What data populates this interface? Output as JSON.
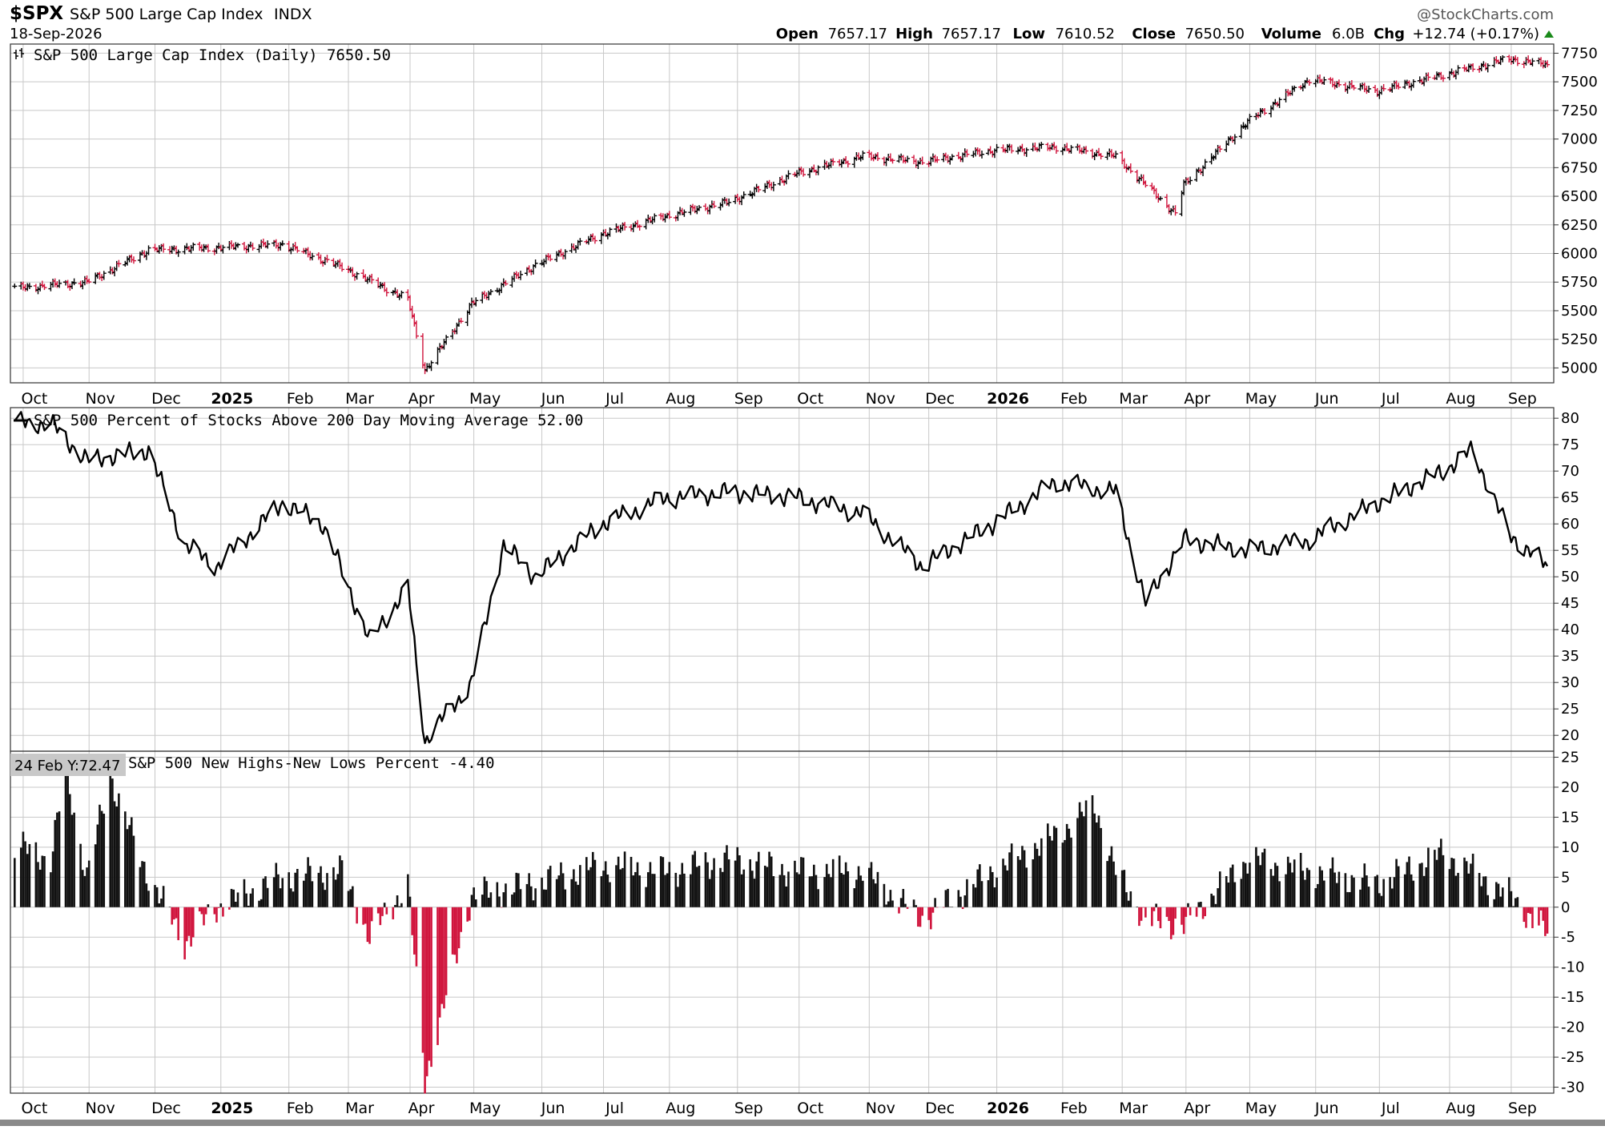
{
  "header": {
    "symbol": "$SPX",
    "name": "S&P 500 Large Cap Index",
    "exchange": "INDX",
    "date": "18-Sep-2026",
    "watermark": "@StockCharts.com",
    "open_label": "Open",
    "open": "7657.17",
    "high_label": "High",
    "high": "7657.17",
    "low_label": "Low",
    "low": "7610.52",
    "close_label": "Close",
    "close": "7650.50",
    "volume_label": "Volume",
    "volume": "6.0B",
    "chg_label": "Chg",
    "chg": "+12.74 (+0.17%)"
  },
  "colors": {
    "up": "#000000",
    "down": "#d0143c",
    "grid": "#c8c8c8",
    "axis": "#333333",
    "tooltip_bg": "#c8c8c8",
    "bottom_bar": "#8a8a8a"
  },
  "x_labels": [
    "Oct",
    "Nov",
    "Dec",
    "2025",
    "Feb",
    "Mar",
    "Apr",
    "May",
    "Jun",
    "Jul",
    "Aug",
    "Sep",
    "Oct",
    "Nov",
    "Dec",
    "2026",
    "Feb",
    "Mar",
    "Apr",
    "May",
    "Jun",
    "Jul",
    "Aug",
    "Sep"
  ],
  "tooltip": "24 Feb Y:72.47",
  "chart_data": [
    {
      "type": "ohlc",
      "title": "S&P 500 Large Cap Index (Daily) 7650.50",
      "x": [
        "2024-09-30",
        "2024-10-31",
        "2024-11-29",
        "2024-12-31",
        "2025-01-31",
        "2025-02-28",
        "2025-03-31",
        "2025-04-08",
        "2025-04-30",
        "2025-05-30",
        "2025-06-30",
        "2025-07-31",
        "2025-08-29",
        "2025-09-30",
        "2025-10-31",
        "2025-11-28",
        "2025-12-31",
        "2026-01-30",
        "2026-02-27",
        "2026-03-27",
        "2026-03-31",
        "2026-04-30",
        "2026-05-29",
        "2026-06-30",
        "2026-07-31",
        "2026-08-31",
        "2026-09-18"
      ],
      "close": [
        5700,
        5750,
        6030,
        6050,
        6080,
        5880,
        5600,
        4980,
        5560,
        5900,
        6170,
        6330,
        6450,
        6700,
        6850,
        6800,
        6900,
        6930,
        6850,
        6350,
        6600,
        7150,
        7520,
        7420,
        7560,
        7700,
        7650
      ],
      "y_ticks": [
        5000,
        5250,
        5500,
        5750,
        6000,
        6250,
        6500,
        6750,
        7000,
        7250,
        7500,
        7750
      ],
      "ylim": [
        4870,
        7830
      ],
      "last": 7650.5
    },
    {
      "type": "line",
      "title": "S&P 500 Percent of Stocks Above 200 Day Moving Average 52.00",
      "x": [
        "2024-09-30",
        "2024-10-14",
        "2024-10-31",
        "2024-11-29",
        "2024-12-16",
        "2024-12-31",
        "2025-01-31",
        "2025-02-19",
        "2025-03-13",
        "2025-03-31",
        "2025-04-08",
        "2025-04-30",
        "2025-05-15",
        "2025-05-30",
        "2025-06-30",
        "2025-07-31",
        "2025-08-29",
        "2025-09-30",
        "2025-10-31",
        "2025-11-28",
        "2025-12-31",
        "2026-01-30",
        "2026-02-27",
        "2026-03-13",
        "2026-03-31",
        "2026-04-30",
        "2026-05-29",
        "2026-06-30",
        "2026-07-31",
        "2026-08-14",
        "2026-08-31",
        "2026-09-18"
      ],
      "values": [
        79,
        79,
        72,
        74,
        56,
        52,
        64,
        60,
        38,
        48,
        19,
        30,
        56,
        50,
        60,
        65,
        66,
        65,
        62,
        52,
        60,
        68,
        66,
        45,
        57,
        55,
        57,
        64,
        70,
        74,
        58,
        52
      ],
      "y_ticks": [
        20,
        25,
        30,
        35,
        40,
        45,
        50,
        55,
        60,
        65,
        70,
        75,
        80
      ],
      "ylim": [
        17,
        82
      ],
      "last": 52.0
    },
    {
      "type": "bar",
      "title": "S&P 500 New Highs-New Lows Percent -4.40",
      "x": [
        "2024-09-30",
        "2024-10-14",
        "2024-10-21",
        "2024-10-31",
        "2024-11-11",
        "2024-11-25",
        "2024-12-16",
        "2024-12-31",
        "2025-01-31",
        "2025-02-28",
        "2025-03-13",
        "2025-03-31",
        "2025-04-08",
        "2025-04-30",
        "2025-05-30",
        "2025-06-30",
        "2025-07-31",
        "2025-08-29",
        "2025-09-30",
        "2025-10-31",
        "2025-11-28",
        "2025-12-31",
        "2026-01-30",
        "2026-02-17",
        "2026-02-27",
        "2026-03-13",
        "2026-03-31",
        "2026-04-30",
        "2026-05-29",
        "2026-06-30",
        "2026-07-31",
        "2026-08-14",
        "2026-08-31",
        "2026-09-18"
      ],
      "values": [
        10,
        8,
        23,
        5,
        22,
        8,
        -6,
        0,
        5,
        6,
        -5,
        4,
        -29,
        2,
        4,
        7,
        6,
        8,
        6,
        6,
        -2,
        6,
        12,
        17,
        6,
        -2,
        -3,
        8,
        6,
        4,
        9,
        6,
        2,
        -4.4
      ],
      "y_ticks": [
        25,
        20,
        15,
        10,
        5,
        0,
        -5,
        -10,
        -15,
        -20,
        -25,
        -30
      ],
      "ylim": [
        -31,
        26
      ],
      "last": -4.4
    }
  ]
}
